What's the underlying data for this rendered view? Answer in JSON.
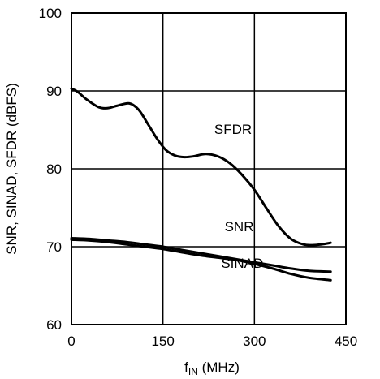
{
  "chart_data": {
    "type": "line",
    "xlabel": {
      "main": "f",
      "sub": "IN",
      "rest": " (MHz)"
    },
    "ylabel": "SNR, SINAD, SFDR (dBFS)",
    "xlim": [
      0,
      450
    ],
    "ylim": [
      60,
      100
    ],
    "x_ticks": [
      0,
      150,
      300,
      450
    ],
    "y_ticks": [
      60,
      70,
      80,
      90,
      100
    ],
    "grid": true,
    "series": [
      {
        "name": "SFDR",
        "x": [
          0,
          10,
          25,
          45,
          60,
          75,
          95,
          110,
          125,
          140,
          155,
          170,
          185,
          200,
          220,
          240,
          260,
          280,
          300,
          320,
          340,
          360,
          380,
          395,
          410,
          425
        ],
        "y": [
          90.3,
          89.9,
          88.9,
          87.9,
          87.8,
          88.1,
          88.4,
          87.6,
          85.8,
          83.9,
          82.4,
          81.7,
          81.5,
          81.6,
          81.9,
          81.6,
          80.7,
          79.2,
          77.3,
          74.9,
          72.6,
          71.0,
          70.3,
          70.2,
          70.3,
          70.5
        ]
      },
      {
        "name": "SNR",
        "x": [
          0,
          30,
          60,
          90,
          120,
          150,
          180,
          210,
          240,
          270,
          300,
          330,
          360,
          390,
          425
        ],
        "y": [
          71.1,
          71.0,
          70.8,
          70.6,
          70.3,
          70.0,
          69.6,
          69.2,
          68.8,
          68.4,
          68.0,
          67.6,
          67.2,
          66.9,
          66.8
        ]
      },
      {
        "name": "SINAD",
        "x": [
          0,
          30,
          60,
          90,
          120,
          150,
          180,
          210,
          240,
          270,
          300,
          330,
          360,
          390,
          425
        ],
        "y": [
          70.9,
          70.8,
          70.6,
          70.3,
          70.0,
          69.7,
          69.3,
          68.9,
          68.6,
          68.3,
          67.8,
          67.2,
          66.5,
          66.0,
          65.7
        ]
      }
    ],
    "annotations": [
      {
        "text": "SFDR",
        "x": 265,
        "y": 84.5
      },
      {
        "text": "SNR",
        "x": 275,
        "y": 72.0
      },
      {
        "text": "SINAD",
        "x": 280,
        "y": 67.3
      }
    ]
  }
}
